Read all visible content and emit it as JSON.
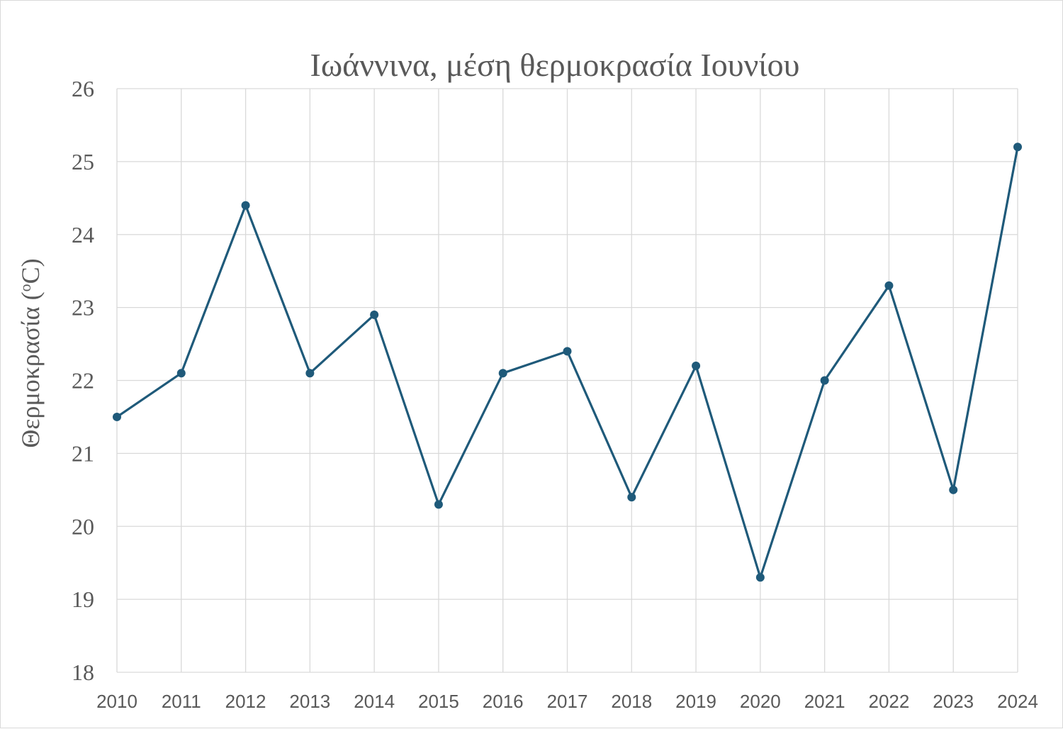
{
  "chart_data": {
    "type": "line",
    "title": "Ιωάννινα, μέση θερμοκρασία Ιουνίου",
    "xlabel": "",
    "ylabel_text": "Θερμοκρασία (",
    "ylabel_unit": "C)",
    "ylabel_degree": "o",
    "ylim": [
      18,
      26
    ],
    "yticks": [
      "18",
      "19",
      "20",
      "21",
      "22",
      "23",
      "24",
      "25",
      "26"
    ],
    "x": [
      "2010",
      "2011",
      "2012",
      "2013",
      "2014",
      "2015",
      "2016",
      "2017",
      "2018",
      "2019",
      "2020",
      "2021",
      "2022",
      "2023",
      "2024"
    ],
    "series": [
      {
        "values": [
          21.5,
          22.1,
          24.4,
          22.1,
          22.9,
          20.3,
          22.1,
          22.4,
          20.4,
          22.2,
          19.3,
          22.0,
          23.3,
          20.5,
          25.2
        ]
      }
    ],
    "grid": true,
    "legend": "none",
    "line_color": "#1f5a7a",
    "grid_color": "#d9d9d9",
    "text_color": "#595959"
  }
}
